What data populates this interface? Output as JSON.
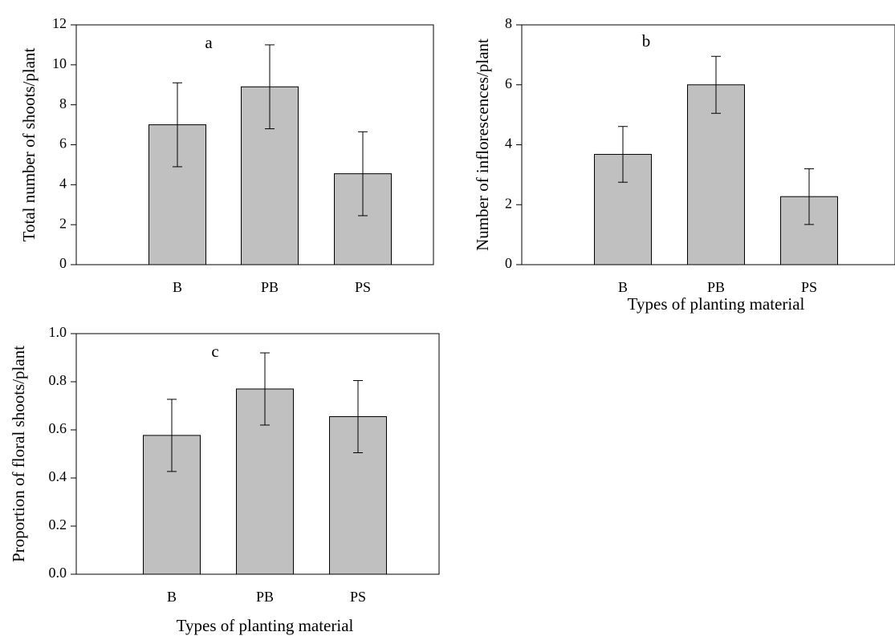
{
  "chart_data": [
    {
      "type": "bar",
      "annotation": "a",
      "ylabel": "Total number of shoots/plant",
      "categories": [
        "B",
        "PB",
        "PS"
      ],
      "values": [
        7.0,
        8.9,
        4.55
      ],
      "errors": [
        2.1,
        2.1,
        2.1
      ],
      "color": "#c0c0c0",
      "ylim": [
        0,
        12
      ],
      "yticks": [
        0,
        2,
        4,
        6,
        8,
        10,
        12
      ]
    },
    {
      "type": "bar",
      "annotation": "b",
      "ylabel": "Number of inflorescences/plant",
      "xlabel": "Types of planting material",
      "categories": [
        "B",
        "PB",
        "PS"
      ],
      "values": [
        3.68,
        6.0,
        2.27
      ],
      "errors": [
        0.93,
        0.95,
        0.93
      ],
      "color": "#c0c0c0",
      "ylim": [
        0,
        8
      ],
      "yticks": [
        0,
        2,
        4,
        6,
        8
      ]
    },
    {
      "type": "bar",
      "annotation": "c",
      "ylabel": "Proportion of floral shoots/plant",
      "xlabel": "Types of planting material",
      "categories": [
        "B",
        "PB",
        "PS"
      ],
      "values": [
        0.577,
        0.77,
        0.655
      ],
      "errors": [
        0.15,
        0.15,
        0.15
      ],
      "color": "#c0c0c0",
      "ylim": [
        0,
        1
      ],
      "yticks": [
        {
          "value": 0,
          "label": "0.0"
        },
        0.2,
        0.4,
        0.6,
        0.8,
        {
          "value": 1,
          "label": "1.0"
        }
      ]
    }
  ]
}
